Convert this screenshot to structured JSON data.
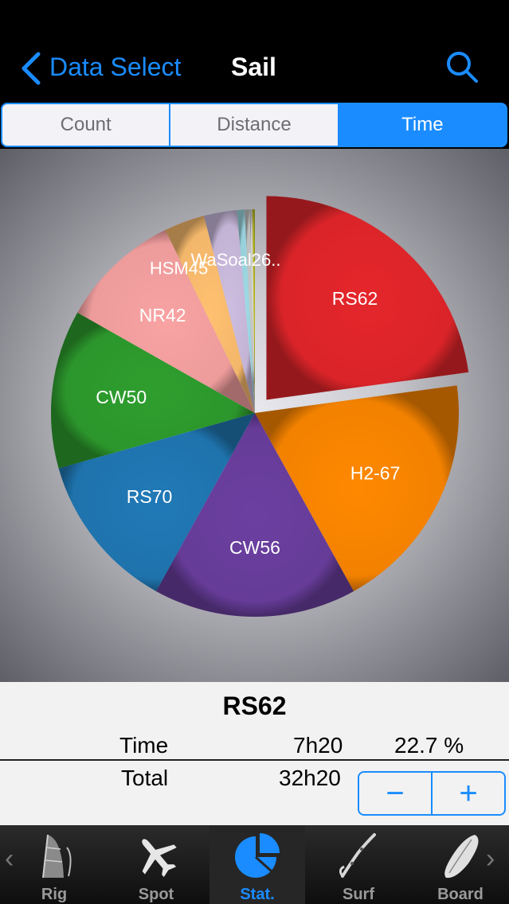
{
  "nav": {
    "back_label": "Data Select",
    "title": "Sail"
  },
  "segments": [
    "Count",
    "Distance",
    "Time"
  ],
  "selected_segment": "Time",
  "chart_data": {
    "type": "pie",
    "metric": "Time",
    "exploded": "RS62",
    "slices": [
      {
        "label": "RS62",
        "value": 22.7,
        "color": "#e5262b"
      },
      {
        "label": "H2-67",
        "value": 19.0,
        "color": "#ff8800"
      },
      {
        "label": "CW56",
        "value": 16.0,
        "color": "#6b3fa0"
      },
      {
        "label": "RS70",
        "value": 12.5,
        "color": "#2079b6"
      },
      {
        "label": "CW50",
        "value": 12.5,
        "color": "#2e9e2e"
      },
      {
        "label": "NR42",
        "value": 9.5,
        "color": "#f9a3a3"
      },
      {
        "label": "HSM45",
        "value": 3.2,
        "color": "#ffc070"
      },
      {
        "label": "",
        "value": 2.6,
        "color": "#cdbde0"
      },
      {
        "label": "",
        "value": 0.6,
        "color": "#9edae5"
      },
      {
        "label": "",
        "value": 0.4,
        "color": "#c7c7c7"
      },
      {
        "label": "",
        "value": 0.2,
        "color": "#d9d9d9"
      },
      {
        "label": "",
        "value": 0.2,
        "color": "#bcbd22"
      }
    ]
  },
  "overlap_text": "WaSoal26..",
  "selection": {
    "name": "RS62",
    "time_label": "Time",
    "time_value": "7h20",
    "percent": "22.7 %",
    "total_label": "Total",
    "total_value": "32h20"
  },
  "stepper": {
    "minus": "−",
    "plus": "+"
  },
  "tabs": [
    {
      "label": "Rig",
      "icon": "sail-icon"
    },
    {
      "label": "Spot",
      "icon": "airplane-icon"
    },
    {
      "label": "Stat.",
      "icon": "pie-chart-icon"
    },
    {
      "label": "Surf",
      "icon": "surfer-icon"
    },
    {
      "label": "Board",
      "icon": "board-icon"
    }
  ],
  "active_tab": "Stat.",
  "tab_arrows": {
    "left": "‹",
    "right": "›"
  }
}
